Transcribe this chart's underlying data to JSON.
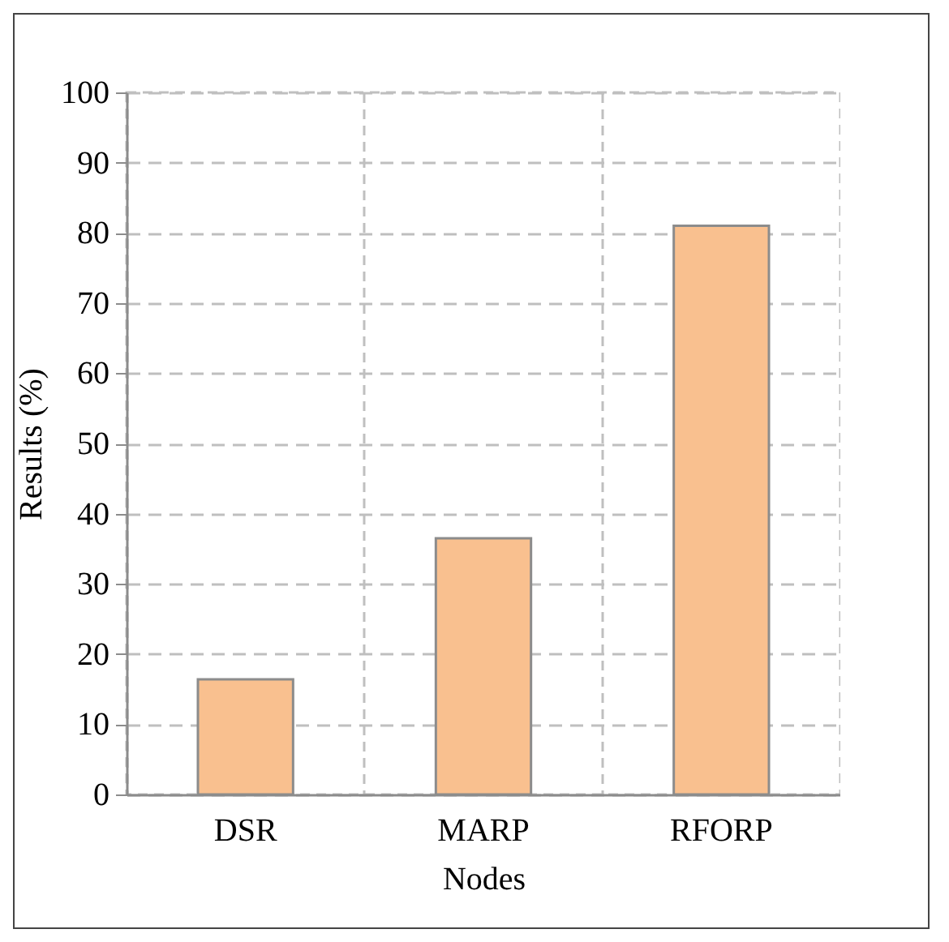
{
  "chart_data": {
    "type": "bar",
    "xlabel": "Nodes",
    "ylabel": "Results (%)",
    "categories": [
      "DSR",
      "MARP",
      "RFORP"
    ],
    "values": [
      16.4,
      36.5,
      81
    ],
    "color": "#f9c08f",
    "ylim": [
      0,
      100
    ],
    "yticks": [
      0,
      10,
      20,
      30,
      40,
      50,
      60,
      70,
      80,
      90,
      100
    ],
    "grid": true
  }
}
